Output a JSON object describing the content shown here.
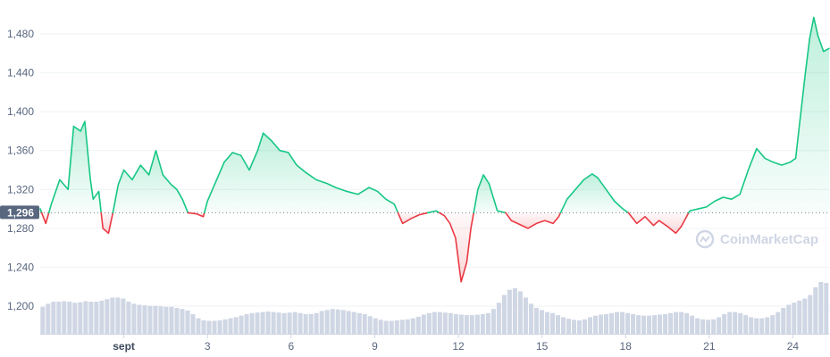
{
  "watermark": {
    "text": "CoinMarketCap",
    "icon": "coinmarketcap-logo-icon"
  },
  "colors": {
    "up": "#16c784",
    "down": "#ea3943",
    "volume": "#cfd6e4",
    "label_bg": "#58667e",
    "grid": "#eff2f5"
  },
  "chart_data": {
    "type": "line",
    "baseline": 1296,
    "baseline_label": "1,296",
    "ylim": [
      1180,
      1500
    ],
    "xlim": [
      -3.0,
      25.3
    ],
    "y_ticks": [
      {
        "value": 1200,
        "label": "1,200"
      },
      {
        "value": 1240,
        "label": "1,240"
      },
      {
        "value": 1280,
        "label": "1,280"
      },
      {
        "value": 1320,
        "label": "1,320"
      },
      {
        "value": 1360,
        "label": "1,360"
      },
      {
        "value": 1400,
        "label": "1,400"
      },
      {
        "value": 1440,
        "label": "1,440"
      },
      {
        "value": 1480,
        "label": "1,480"
      }
    ],
    "x_ticks": [
      {
        "value": 0,
        "label": "sept",
        "bold": true
      },
      {
        "value": 3,
        "label": "3"
      },
      {
        "value": 6,
        "label": "6"
      },
      {
        "value": 9,
        "label": "9"
      },
      {
        "value": 12,
        "label": "12"
      },
      {
        "value": 15,
        "label": "15"
      },
      {
        "value": 18,
        "label": "18"
      },
      {
        "value": 21,
        "label": "21"
      },
      {
        "value": 24,
        "label": "24"
      }
    ],
    "series": [
      {
        "values": [
          [
            -3.0,
            1300
          ],
          [
            -2.8,
            1285
          ],
          [
            -2.6,
            1305
          ],
          [
            -2.3,
            1330
          ],
          [
            -2.0,
            1320
          ],
          [
            -1.8,
            1385
          ],
          [
            -1.55,
            1380
          ],
          [
            -1.4,
            1390
          ],
          [
            -1.2,
            1330
          ],
          [
            -1.1,
            1310
          ],
          [
            -0.9,
            1318
          ],
          [
            -0.75,
            1280
          ],
          [
            -0.55,
            1275
          ],
          [
            -0.4,
            1295
          ],
          [
            -0.2,
            1325
          ],
          [
            0.0,
            1340
          ],
          [
            0.3,
            1330
          ],
          [
            0.6,
            1345
          ],
          [
            0.9,
            1335
          ],
          [
            1.15,
            1360
          ],
          [
            1.4,
            1335
          ],
          [
            1.7,
            1325
          ],
          [
            1.9,
            1320
          ],
          [
            2.1,
            1310
          ],
          [
            2.3,
            1296
          ],
          [
            2.6,
            1295
          ],
          [
            2.85,
            1292
          ],
          [
            3.0,
            1308
          ],
          [
            3.3,
            1328
          ],
          [
            3.6,
            1348
          ],
          [
            3.9,
            1358
          ],
          [
            4.2,
            1355
          ],
          [
            4.5,
            1340
          ],
          [
            4.8,
            1360
          ],
          [
            5.0,
            1378
          ],
          [
            5.3,
            1370
          ],
          [
            5.6,
            1360
          ],
          [
            5.9,
            1358
          ],
          [
            6.2,
            1345
          ],
          [
            6.5,
            1338
          ],
          [
            6.9,
            1330
          ],
          [
            7.3,
            1326
          ],
          [
            7.6,
            1322
          ],
          [
            8.0,
            1318
          ],
          [
            8.4,
            1315
          ],
          [
            8.8,
            1322
          ],
          [
            9.1,
            1318
          ],
          [
            9.4,
            1310
          ],
          [
            9.7,
            1305
          ],
          [
            10.0,
            1285
          ],
          [
            10.3,
            1290
          ],
          [
            10.6,
            1294
          ],
          [
            10.9,
            1296
          ],
          [
            11.2,
            1298
          ],
          [
            11.5,
            1293
          ],
          [
            11.7,
            1285
          ],
          [
            11.9,
            1270
          ],
          [
            12.1,
            1225
          ],
          [
            12.3,
            1245
          ],
          [
            12.45,
            1280
          ],
          [
            12.7,
            1320
          ],
          [
            12.9,
            1335
          ],
          [
            13.1,
            1326
          ],
          [
            13.4,
            1298
          ],
          [
            13.7,
            1296
          ],
          [
            13.9,
            1288
          ],
          [
            14.2,
            1284
          ],
          [
            14.5,
            1280
          ],
          [
            14.8,
            1285
          ],
          [
            15.1,
            1288
          ],
          [
            15.4,
            1285
          ],
          [
            15.6,
            1292
          ],
          [
            15.9,
            1310
          ],
          [
            16.2,
            1320
          ],
          [
            16.5,
            1330
          ],
          [
            16.8,
            1336
          ],
          [
            17.0,
            1332
          ],
          [
            17.3,
            1320
          ],
          [
            17.6,
            1308
          ],
          [
            17.9,
            1300
          ],
          [
            18.1,
            1296
          ],
          [
            18.4,
            1285
          ],
          [
            18.7,
            1292
          ],
          [
            19.0,
            1283
          ],
          [
            19.2,
            1288
          ],
          [
            19.5,
            1282
          ],
          [
            19.8,
            1275
          ],
          [
            20.0,
            1282
          ],
          [
            20.3,
            1298
          ],
          [
            20.6,
            1300
          ],
          [
            20.9,
            1302
          ],
          [
            21.2,
            1308
          ],
          [
            21.5,
            1312
          ],
          [
            21.8,
            1310
          ],
          [
            22.1,
            1315
          ],
          [
            22.4,
            1340
          ],
          [
            22.7,
            1362
          ],
          [
            23.0,
            1352
          ],
          [
            23.3,
            1348
          ],
          [
            23.6,
            1345
          ],
          [
            23.9,
            1348
          ],
          [
            24.1,
            1352
          ],
          [
            24.25,
            1390
          ],
          [
            24.45,
            1440
          ],
          [
            24.6,
            1475
          ],
          [
            24.75,
            1497
          ],
          [
            24.9,
            1478
          ],
          [
            25.1,
            1462
          ],
          [
            25.3,
            1465
          ]
        ]
      }
    ],
    "volume": [
      0.52,
      0.58,
      0.62,
      0.62,
      0.63,
      0.62,
      0.6,
      0.61,
      0.63,
      0.62,
      0.62,
      0.64,
      0.67,
      0.7,
      0.7,
      0.68,
      0.62,
      0.58,
      0.56,
      0.55,
      0.54,
      0.54,
      0.53,
      0.52,
      0.52,
      0.5,
      0.48,
      0.45,
      0.38,
      0.3,
      0.26,
      0.25,
      0.25,
      0.26,
      0.28,
      0.3,
      0.32,
      0.35,
      0.38,
      0.4,
      0.41,
      0.42,
      0.43,
      0.42,
      0.41,
      0.4,
      0.41,
      0.42,
      0.4,
      0.38,
      0.38,
      0.4,
      0.44,
      0.46,
      0.48,
      0.47,
      0.46,
      0.44,
      0.42,
      0.4,
      0.38,
      0.34,
      0.3,
      0.27,
      0.25,
      0.25,
      0.26,
      0.27,
      0.28,
      0.3,
      0.33,
      0.37,
      0.4,
      0.42,
      0.42,
      0.41,
      0.4,
      0.38,
      0.37,
      0.36,
      0.36,
      0.37,
      0.38,
      0.4,
      0.48,
      0.6,
      0.75,
      0.85,
      0.88,
      0.82,
      0.7,
      0.58,
      0.5,
      0.46,
      0.42,
      0.4,
      0.36,
      0.32,
      0.29,
      0.27,
      0.26,
      0.28,
      0.32,
      0.35,
      0.37,
      0.38,
      0.4,
      0.42,
      0.42,
      0.4,
      0.38,
      0.36,
      0.35,
      0.35,
      0.36,
      0.37,
      0.38,
      0.4,
      0.42,
      0.42,
      0.4,
      0.35,
      0.3,
      0.28,
      0.27,
      0.28,
      0.32,
      0.38,
      0.42,
      0.42,
      0.4,
      0.36,
      0.32,
      0.3,
      0.3,
      0.32,
      0.36,
      0.42,
      0.5,
      0.56,
      0.6,
      0.64,
      0.68,
      0.75,
      0.9,
      1.0,
      0.98
    ]
  }
}
